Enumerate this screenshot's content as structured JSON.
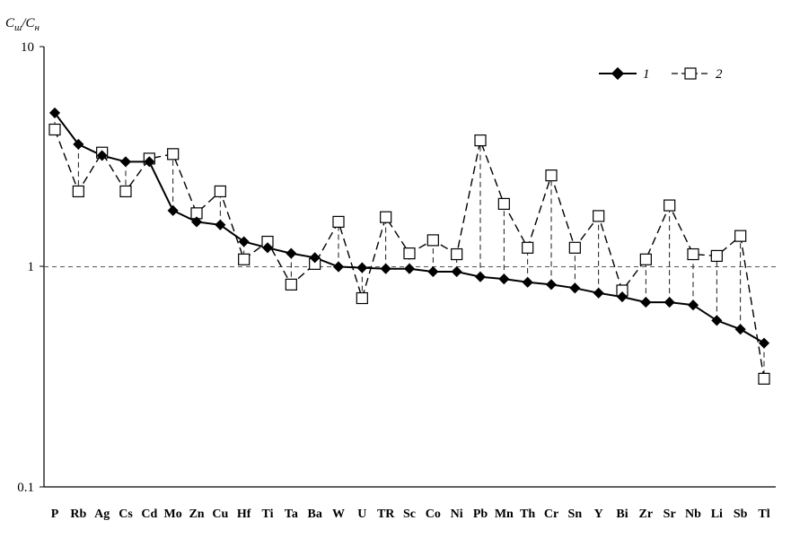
{
  "chart_data": {
    "type": "line",
    "y_scale": "log",
    "ylim": [
      0.1,
      10
    ],
    "y_ticks": [
      "10",
      "1",
      "0.1"
    ],
    "y_tick_values": [
      10,
      1,
      0.1
    ],
    "ylabel": {
      "main_left": "C",
      "sub_left": "ш",
      "slash": "/",
      "main_right": "C",
      "sub_right": "н"
    },
    "reference_line": 1,
    "grid": false,
    "legend_position": "top-right",
    "categories": [
      "P",
      "Rb",
      "Ag",
      "Cs",
      "Cd",
      "Mo",
      "Zn",
      "Cu",
      "Hf",
      "Ti",
      "Ta",
      "Ba",
      "W",
      "U",
      "TR",
      "Sc",
      "Co",
      "Ni",
      "Pb",
      "Mn",
      "Th",
      "Cr",
      "Sn",
      "Y",
      "Bi",
      "Zr",
      "Sr",
      "Nb",
      "Li",
      "Sb",
      "Tl"
    ],
    "series": [
      {
        "name": "1",
        "marker": "filled-diamond",
        "line": "solid",
        "color": "#000000",
        "values": [
          5.0,
          3.6,
          3.2,
          3.0,
          3.0,
          1.8,
          1.6,
          1.55,
          1.3,
          1.22,
          1.15,
          1.1,
          1.0,
          0.99,
          0.98,
          0.98,
          0.95,
          0.95,
          0.9,
          0.88,
          0.85,
          0.83,
          0.8,
          0.76,
          0.73,
          0.69,
          0.69,
          0.67,
          0.57,
          0.52,
          0.45
        ]
      },
      {
        "name": "2",
        "marker": "open-square",
        "line": "dashed",
        "color": "#000000",
        "values": [
          4.2,
          2.2,
          3.3,
          2.2,
          3.1,
          3.25,
          1.75,
          2.2,
          1.08,
          1.3,
          0.83,
          1.03,
          1.6,
          0.72,
          1.68,
          1.15,
          1.32,
          1.14,
          3.75,
          1.93,
          1.22,
          2.6,
          1.22,
          1.7,
          0.78,
          1.08,
          1.9,
          1.14,
          1.12,
          1.38,
          0.31
        ]
      }
    ]
  }
}
